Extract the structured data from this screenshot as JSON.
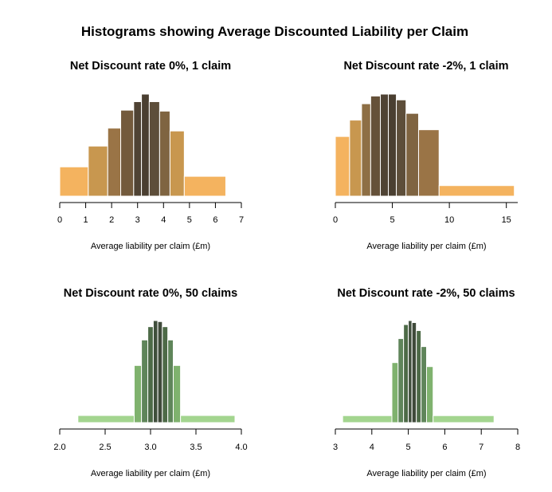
{
  "title": "Histograms showing Average Discounted Liability per Claim",
  "chart_data": [
    {
      "type": "bar",
      "title": "Net Discount rate 0%, 1 claim",
      "xlabel": "Average liability per claim (£m)",
      "ylabel": "",
      "xlim": [
        0,
        7
      ],
      "xticks": [
        "0",
        "1",
        "2",
        "3",
        "4",
        "5",
        "6",
        "7"
      ],
      "bins": [
        {
          "start": 0.0,
          "end": 1.1,
          "height": 0.31,
          "color": "#f4b35f"
        },
        {
          "start": 1.1,
          "end": 1.85,
          "height": 0.53,
          "color": "#c8974f"
        },
        {
          "start": 1.85,
          "end": 2.35,
          "height": 0.72,
          "color": "#9a7446"
        },
        {
          "start": 2.35,
          "end": 2.85,
          "height": 0.91,
          "color": "#735a3c"
        },
        {
          "start": 2.85,
          "end": 3.15,
          "height": 1.0,
          "color": "#4f4334"
        },
        {
          "start": 3.15,
          "end": 3.45,
          "height": 1.08,
          "color": "#4a3f31"
        },
        {
          "start": 3.45,
          "end": 3.85,
          "height": 1.0,
          "color": "#5d4e3a"
        },
        {
          "start": 3.85,
          "end": 4.25,
          "height": 0.9,
          "color": "#7f6441"
        },
        {
          "start": 4.25,
          "end": 4.8,
          "height": 0.69,
          "color": "#c8974f"
        },
        {
          "start": 4.8,
          "end": 6.4,
          "height": 0.21,
          "color": "#f4b35f"
        }
      ]
    },
    {
      "type": "bar",
      "title": "Net Discount rate -2%, 1 claim",
      "xlabel": "Average liability per claim (£m)",
      "ylabel": "",
      "xlim": [
        0,
        16
      ],
      "xticks": [
        "0",
        "5",
        "10",
        "15"
      ],
      "tick_values": [
        0,
        5,
        10,
        15
      ],
      "bins": [
        {
          "start": 0.0,
          "end": 1.25,
          "height": 0.62,
          "color": "#f4b35f"
        },
        {
          "start": 1.25,
          "end": 2.3,
          "height": 0.79,
          "color": "#c8974f"
        },
        {
          "start": 2.3,
          "end": 3.1,
          "height": 0.96,
          "color": "#8e6f45"
        },
        {
          "start": 3.1,
          "end": 3.95,
          "height": 1.04,
          "color": "#655139"
        },
        {
          "start": 3.95,
          "end": 4.65,
          "height": 1.06,
          "color": "#4f4334"
        },
        {
          "start": 4.65,
          "end": 5.35,
          "height": 1.06,
          "color": "#4a3f31"
        },
        {
          "start": 5.35,
          "end": 6.2,
          "height": 1.0,
          "color": "#5d4e3a"
        },
        {
          "start": 6.2,
          "end": 7.3,
          "height": 0.86,
          "color": "#7f6441"
        },
        {
          "start": 7.3,
          "end": 9.1,
          "height": 0.69,
          "color": "#9a7446"
        },
        {
          "start": 9.1,
          "end": 15.7,
          "height": 0.11,
          "color": "#f4b35f"
        }
      ]
    },
    {
      "type": "bar",
      "title": "Net Discount rate 0%, 50 claims",
      "xlabel": "Average liability per claim (£m)",
      "ylabel": "",
      "xlim": [
        2.0,
        4.0
      ],
      "xticks": [
        "2.0",
        "2.5",
        "3.0",
        "3.5",
        "4.0"
      ],
      "tick_values": [
        2.0,
        2.5,
        3.0,
        3.5,
        4.0
      ],
      "bins": [
        {
          "start": 2.2,
          "end": 2.82,
          "height": 0.07,
          "color": "#a3d58f"
        },
        {
          "start": 2.82,
          "end": 2.9,
          "height": 0.56,
          "color": "#7fb26e"
        },
        {
          "start": 2.9,
          "end": 2.97,
          "height": 0.81,
          "color": "#5f855a"
        },
        {
          "start": 2.97,
          "end": 3.03,
          "height": 0.94,
          "color": "#4d6a47"
        },
        {
          "start": 3.03,
          "end": 3.08,
          "height": 1.0,
          "color": "#404f3c"
        },
        {
          "start": 3.08,
          "end": 3.13,
          "height": 0.99,
          "color": "#3f4a3a"
        },
        {
          "start": 3.13,
          "end": 3.19,
          "height": 0.94,
          "color": "#4d6a47"
        },
        {
          "start": 3.19,
          "end": 3.25,
          "height": 0.81,
          "color": "#5f855a"
        },
        {
          "start": 3.25,
          "end": 3.33,
          "height": 0.56,
          "color": "#7fb26e"
        },
        {
          "start": 3.33,
          "end": 3.93,
          "height": 0.07,
          "color": "#a3d58f"
        }
      ]
    },
    {
      "type": "bar",
      "title": "Net Discount rate -2%, 50 claims",
      "xlabel": "Average liability per claim (£m)",
      "ylabel": "",
      "xlim": [
        3,
        8
      ],
      "xticks": [
        "3",
        "4",
        "5",
        "6",
        "7",
        "8"
      ],
      "tick_values": [
        3,
        4,
        5,
        6,
        7,
        8
      ],
      "bins": [
        {
          "start": 3.2,
          "end": 4.55,
          "height": 0.07,
          "color": "#a3d58f"
        },
        {
          "start": 4.55,
          "end": 4.72,
          "height": 0.6,
          "color": "#7fb26e"
        },
        {
          "start": 4.72,
          "end": 4.87,
          "height": 0.84,
          "color": "#5f855a"
        },
        {
          "start": 4.87,
          "end": 5.0,
          "height": 0.98,
          "color": "#4d6a47"
        },
        {
          "start": 5.0,
          "end": 5.1,
          "height": 1.02,
          "color": "#404f3c"
        },
        {
          "start": 5.1,
          "end": 5.22,
          "height": 1.0,
          "color": "#3f4a3a"
        },
        {
          "start": 5.22,
          "end": 5.35,
          "height": 0.92,
          "color": "#4d6a47"
        },
        {
          "start": 5.35,
          "end": 5.5,
          "height": 0.76,
          "color": "#5f855a"
        },
        {
          "start": 5.5,
          "end": 5.68,
          "height": 0.56,
          "color": "#7fb26e"
        },
        {
          "start": 5.68,
          "end": 7.35,
          "height": 0.07,
          "color": "#a3d58f"
        }
      ]
    }
  ]
}
